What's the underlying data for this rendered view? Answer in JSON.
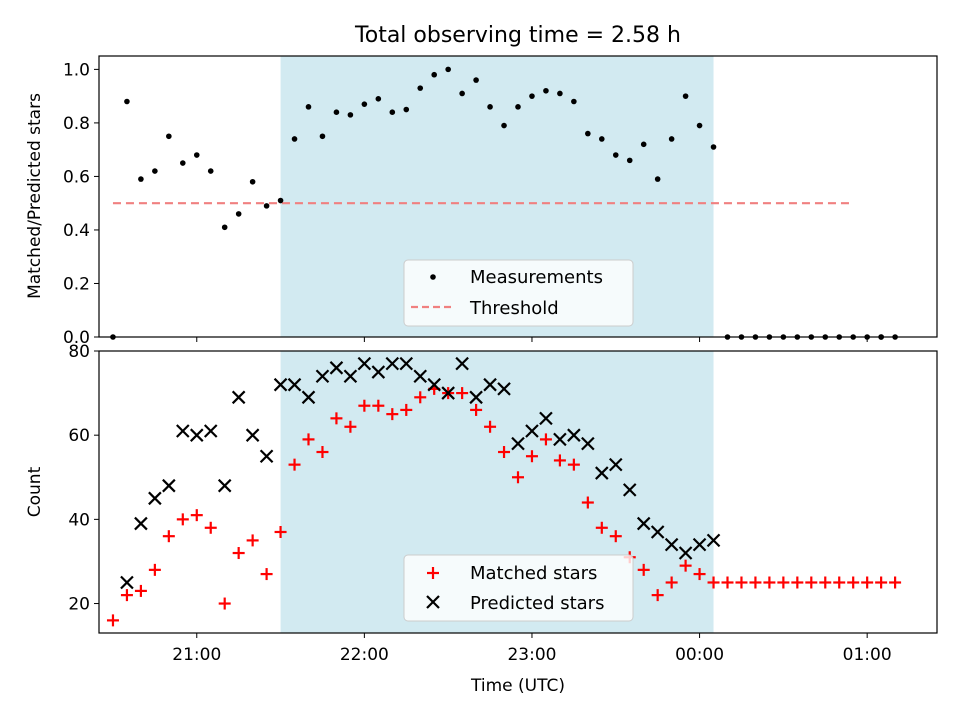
{
  "figure_title": "Total observing time = 2.58 h",
  "colors": {
    "measurement": "#000000",
    "threshold": "#f08080",
    "matched": "#ff0000",
    "predicted": "#000000",
    "shade": "#add8e6"
  },
  "chart_data": [
    {
      "type": "scatter",
      "panel": "top",
      "title": "Total observing time = 2.58 h",
      "ylabel": "Matched/Predicted stars",
      "xlabel": "",
      "xlim": [
        "20:25",
        "01:25"
      ],
      "ylim": [
        0,
        1.05
      ],
      "yticks": [
        0.0,
        0.2,
        0.4,
        0.6,
        0.8,
        1.0
      ],
      "ytick_labels": [
        "0.0",
        "0.2",
        "0.4",
        "0.6",
        "0.8",
        "1.0"
      ],
      "shaded_interval": [
        "21:30",
        "00:05"
      ],
      "grid": false,
      "legend_position": "lower center",
      "series": [
        {
          "name": "Measurements",
          "marker": "dot",
          "x": [
            "20:35",
            "20:40",
            "20:45",
            "20:50",
            "20:55",
            "21:00",
            "21:05",
            "21:10",
            "21:15",
            "21:20",
            "21:25",
            "21:30",
            "21:35",
            "21:40",
            "21:45",
            "21:50",
            "21:55",
            "22:00",
            "22:05",
            "22:10",
            "22:15",
            "22:20",
            "22:25",
            "22:30",
            "22:35",
            "22:40",
            "22:45",
            "22:50",
            "22:55",
            "23:00",
            "23:05",
            "23:10",
            "23:15",
            "23:20",
            "23:25",
            "23:30",
            "23:35",
            "23:40",
            "23:45",
            "23:50",
            "23:55",
            "00:00",
            "00:05",
            "00:10",
            "00:15",
            "00:20",
            "00:25",
            "00:30",
            "00:35",
            "00:40",
            "00:45",
            "00:50",
            "00:55",
            "01:00",
            "01:05",
            "01:10"
          ],
          "y": [
            0.88,
            0.59,
            0.62,
            0.75,
            0.65,
            0.68,
            0.62,
            0.41,
            0.46,
            0.58,
            0.49,
            0.51,
            0.74,
            0.86,
            0.75,
            0.84,
            0.83,
            0.87,
            0.89,
            0.84,
            0.85,
            0.93,
            0.98,
            1.0,
            0.91,
            0.96,
            0.86,
            0.79,
            0.86,
            0.9,
            0.92,
            0.91,
            0.88,
            0.76,
            0.74,
            0.68,
            0.66,
            0.72,
            0.59,
            0.74,
            0.9,
            0.79,
            0.71,
            0,
            0,
            0,
            0,
            0,
            0,
            0,
            0,
            0,
            0,
            0,
            0,
            0
          ]
        },
        {
          "name": "Threshold",
          "style": "dashed",
          "x": [
            "20:30",
            "00:55"
          ],
          "y": [
            0.5,
            0.5
          ]
        }
      ],
      "extra_points": [
        {
          "x": "20:30",
          "y": 0
        },
        {
          "x": "01:05",
          "y": 0
        }
      ]
    },
    {
      "type": "scatter",
      "panel": "bottom",
      "ylabel": "Count",
      "xlabel": "Time (UTC)",
      "xlim": [
        "20:25",
        "01:25"
      ],
      "ylim": [
        13,
        80
      ],
      "yticks": [
        20,
        40,
        60,
        80
      ],
      "ytick_labels": [
        "20",
        "40",
        "60",
        "80"
      ],
      "xticks": [
        "21:00",
        "22:00",
        "23:00",
        "00:00",
        "01:00"
      ],
      "xtick_labels": [
        "21:00",
        "22:00",
        "23:00",
        "00:00",
        "01:00"
      ],
      "shaded_interval": [
        "21:30",
        "00:05"
      ],
      "grid": false,
      "legend_position": "lower center",
      "series": [
        {
          "name": "Matched stars",
          "marker": "plus",
          "x": [
            "20:30",
            "20:35",
            "20:40",
            "20:45",
            "20:50",
            "20:55",
            "21:00",
            "21:05",
            "21:10",
            "21:15",
            "21:20",
            "21:25",
            "21:30",
            "21:35",
            "21:40",
            "21:45",
            "21:50",
            "21:55",
            "22:00",
            "22:05",
            "22:10",
            "22:15",
            "22:20",
            "22:25",
            "22:30",
            "22:35",
            "22:40",
            "22:45",
            "22:50",
            "22:55",
            "23:00",
            "23:05",
            "23:10",
            "23:15",
            "23:20",
            "23:25",
            "23:30",
            "23:35",
            "23:40",
            "23:45",
            "23:50",
            "23:55",
            "00:00",
            "00:05",
            "00:10",
            "00:15",
            "00:20",
            "00:25",
            "00:30",
            "00:35",
            "00:40",
            "00:45",
            "00:50",
            "00:55",
            "01:00",
            "01:05",
            "01:10"
          ],
          "y": [
            16,
            22,
            23,
            28,
            36,
            40,
            41,
            38,
            20,
            32,
            35,
            27,
            37,
            53,
            59,
            56,
            64,
            62,
            67,
            67,
            65,
            66,
            69,
            71,
            70,
            70,
            66,
            62,
            56,
            50,
            55,
            59,
            54,
            53,
            44,
            38,
            36,
            31,
            28,
            22,
            25,
            29,
            27,
            25,
            25,
            25,
            25,
            25,
            25,
            25,
            25,
            25,
            25,
            25,
            25,
            25,
            25
          ]
        },
        {
          "name": "Predicted stars",
          "marker": "x",
          "x": [
            "20:35",
            "20:40",
            "20:45",
            "20:50",
            "20:55",
            "21:00",
            "21:05",
            "21:10",
            "21:15",
            "21:20",
            "21:25",
            "21:30",
            "21:35",
            "21:40",
            "21:45",
            "21:50",
            "21:55",
            "22:00",
            "22:05",
            "22:10",
            "22:15",
            "22:20",
            "22:25",
            "22:30",
            "22:35",
            "22:40",
            "22:45",
            "22:50",
            "22:55",
            "23:00",
            "23:05",
            "23:10",
            "23:15",
            "23:20",
            "23:25",
            "23:30",
            "23:35",
            "23:40",
            "23:45",
            "23:50",
            "23:55",
            "00:00",
            "00:05"
          ],
          "y": [
            25,
            39,
            45,
            48,
            61,
            60,
            61,
            48,
            69,
            60,
            55,
            72,
            72,
            69,
            74,
            76,
            74,
            77,
            75,
            77,
            77,
            74,
            72,
            70,
            77,
            69,
            72,
            71,
            58,
            61,
            64,
            59,
            60,
            58,
            51,
            53,
            47,
            39,
            37,
            34,
            32,
            34,
            35
          ]
        }
      ]
    }
  ]
}
